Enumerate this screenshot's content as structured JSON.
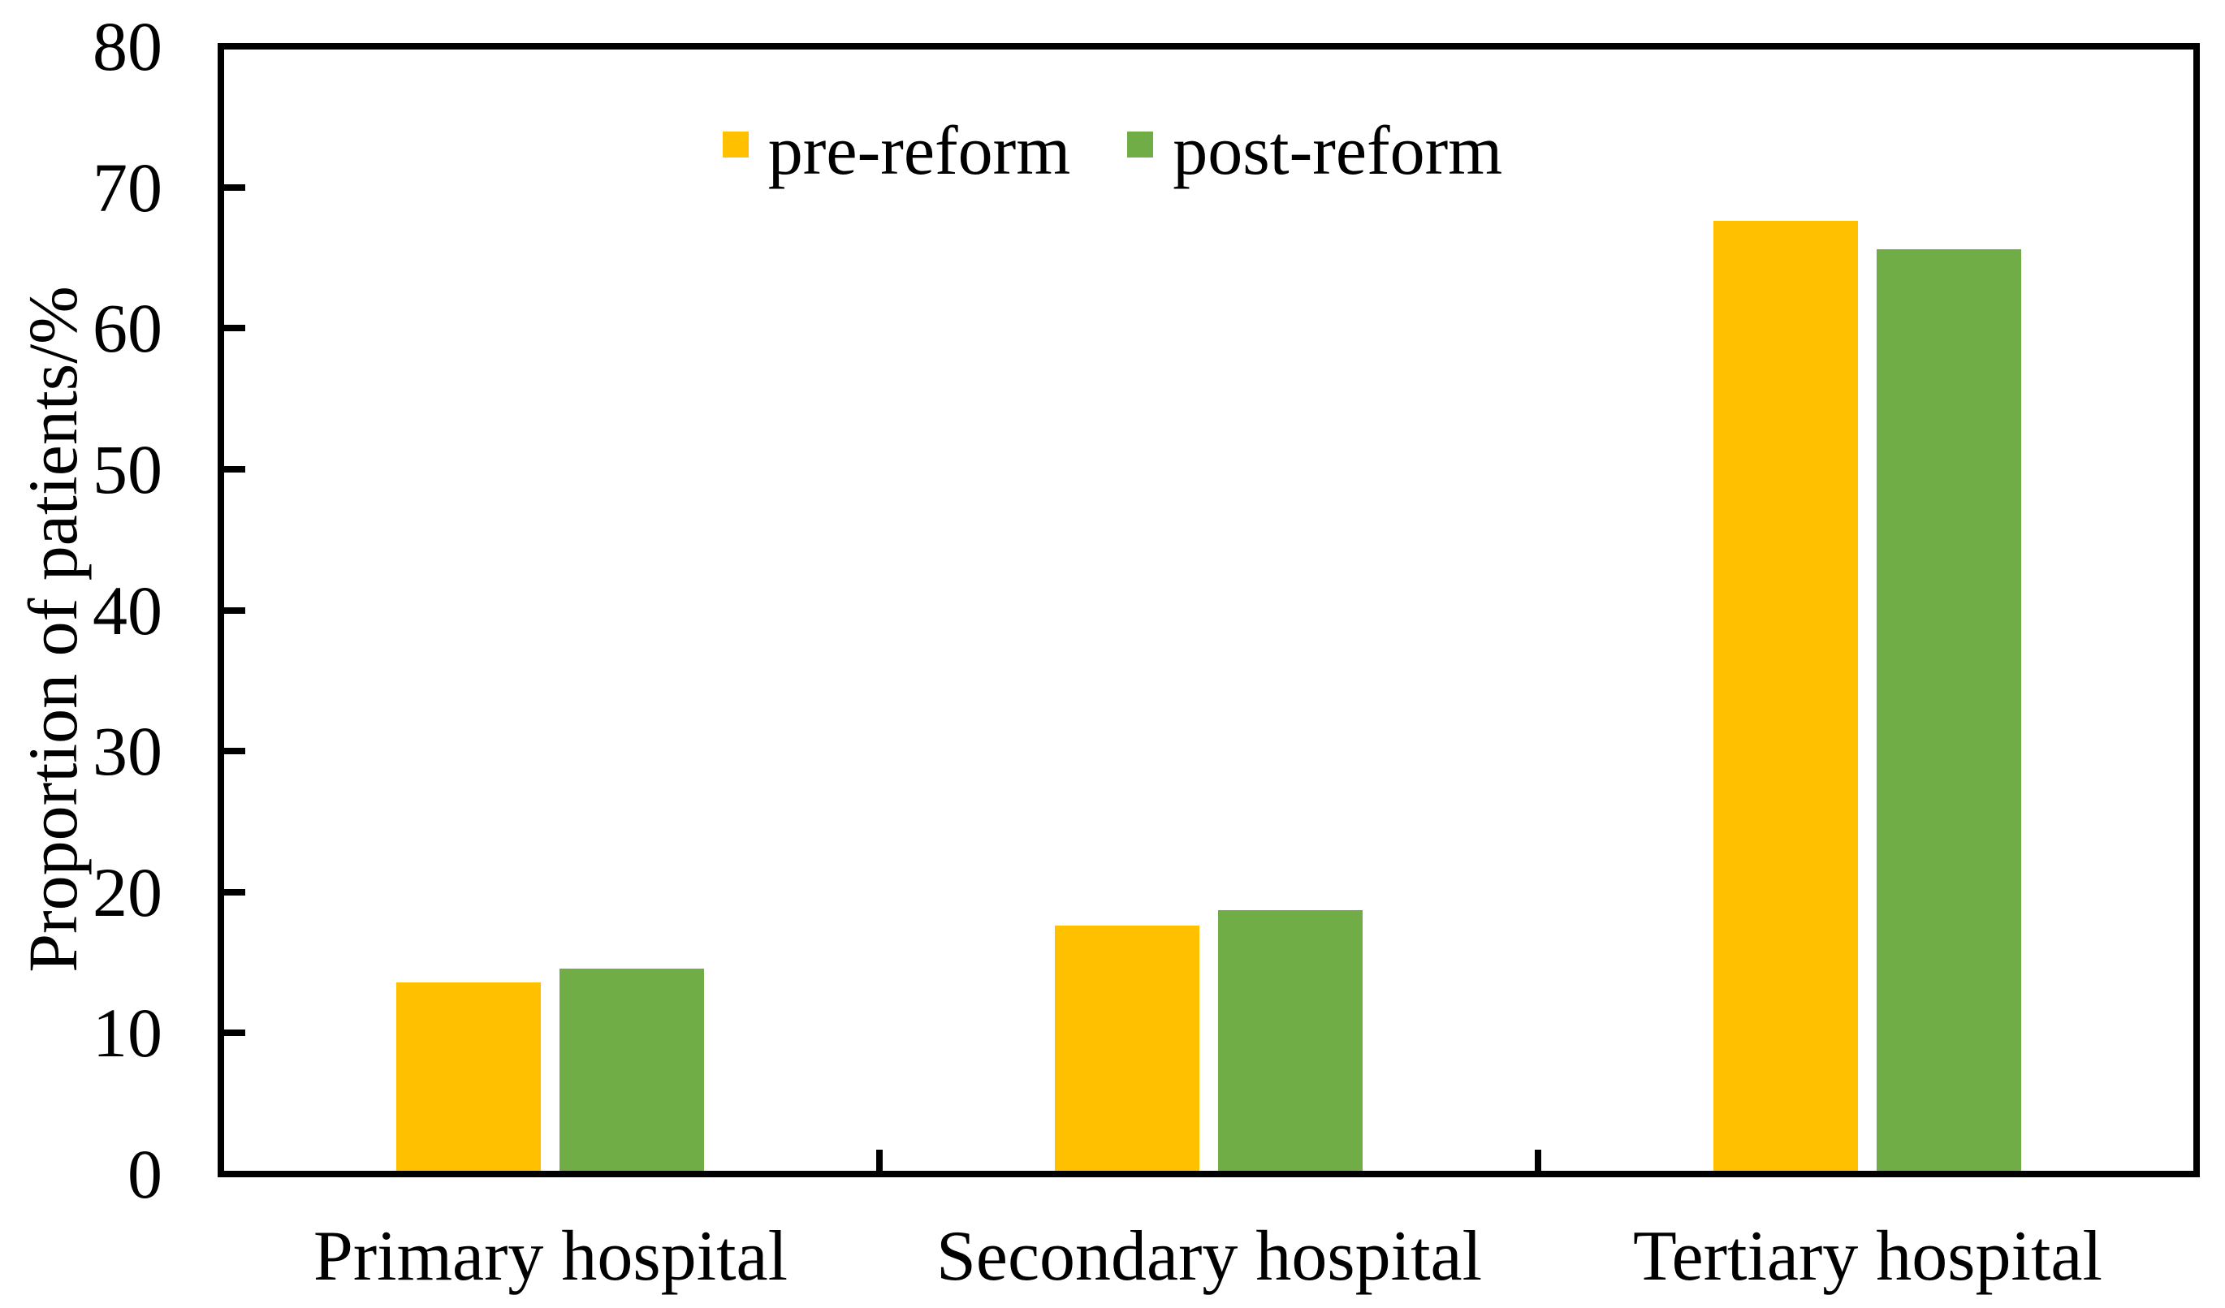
{
  "chart_data": {
    "type": "bar",
    "title": "",
    "categories": [
      "Primary hospital",
      "Secondary hospital",
      "Tertiary hospital"
    ],
    "series": [
      {
        "name": "pre-reform",
        "color": "#FFC000",
        "values": [
          13.6,
          17.6,
          67.6
        ]
      },
      {
        "name": "post-reform",
        "color": "#70AD47",
        "values": [
          14.6,
          18.7,
          65.6
        ]
      }
    ],
    "xlabel": "",
    "ylabel": "Proportion of patients/%",
    "ylim": [
      0,
      80
    ],
    "ytick_step": 10,
    "yticks": [
      0,
      10,
      20,
      30,
      40,
      50,
      60,
      70,
      80
    ],
    "legend_position": "top-center",
    "grid": false,
    "frame": true,
    "tick_direction": "in",
    "axis_color": "#000000",
    "background_color": "#FFFFFF"
  }
}
